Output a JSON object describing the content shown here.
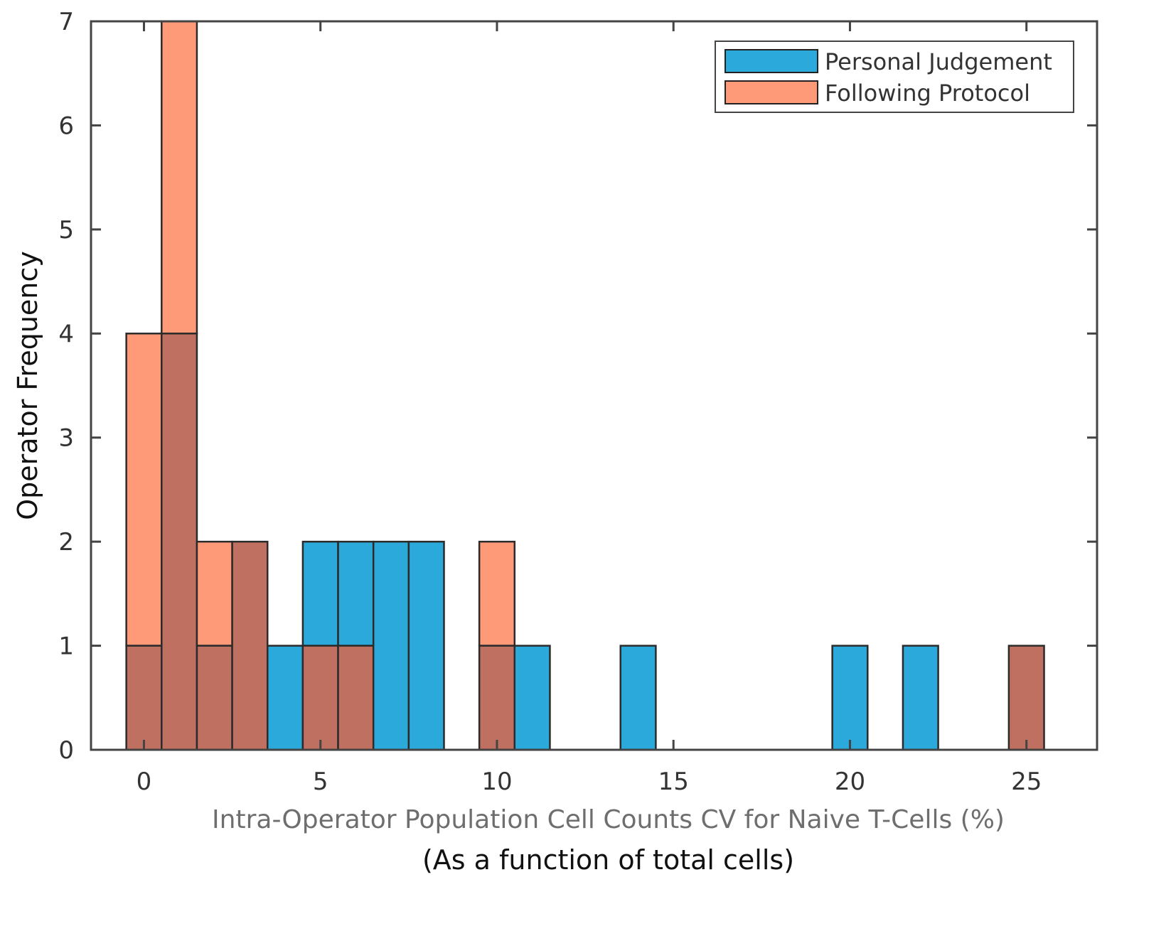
{
  "chart_data": {
    "type": "bar",
    "title": "",
    "xlabel": "Intra-Operator Population Cell Counts CV for Naive T-Cells (%)",
    "xlabel_sub": "(As a function of total cells)",
    "ylabel": "Operator Frequency",
    "xlim": [
      -1.5,
      27
    ],
    "ylim": [
      0,
      7
    ],
    "bin_width": 1,
    "x_ticks": [
      0,
      5,
      10,
      15,
      20,
      25
    ],
    "y_ticks": [
      0,
      1,
      2,
      3,
      4,
      5,
      6,
      7
    ],
    "legend_position": "top-right",
    "overlap_color": "#c07060",
    "series": [
      {
        "name": "Personal Judgement",
        "color": "#2aa9da",
        "bin_centers": [
          0,
          1,
          2,
          3,
          4,
          5,
          6,
          7,
          8,
          10,
          11,
          14,
          20,
          22,
          25
        ],
        "values": [
          1,
          4,
          1,
          2,
          1,
          2,
          2,
          2,
          2,
          1,
          1,
          1,
          1,
          1,
          1
        ]
      },
      {
        "name": "Following Protocol",
        "color": "#ff9a78",
        "bin_centers": [
          0,
          1,
          2,
          3,
          5,
          6,
          10,
          25
        ],
        "values": [
          4,
          7,
          2,
          2,
          1,
          1,
          2,
          1
        ]
      }
    ]
  }
}
